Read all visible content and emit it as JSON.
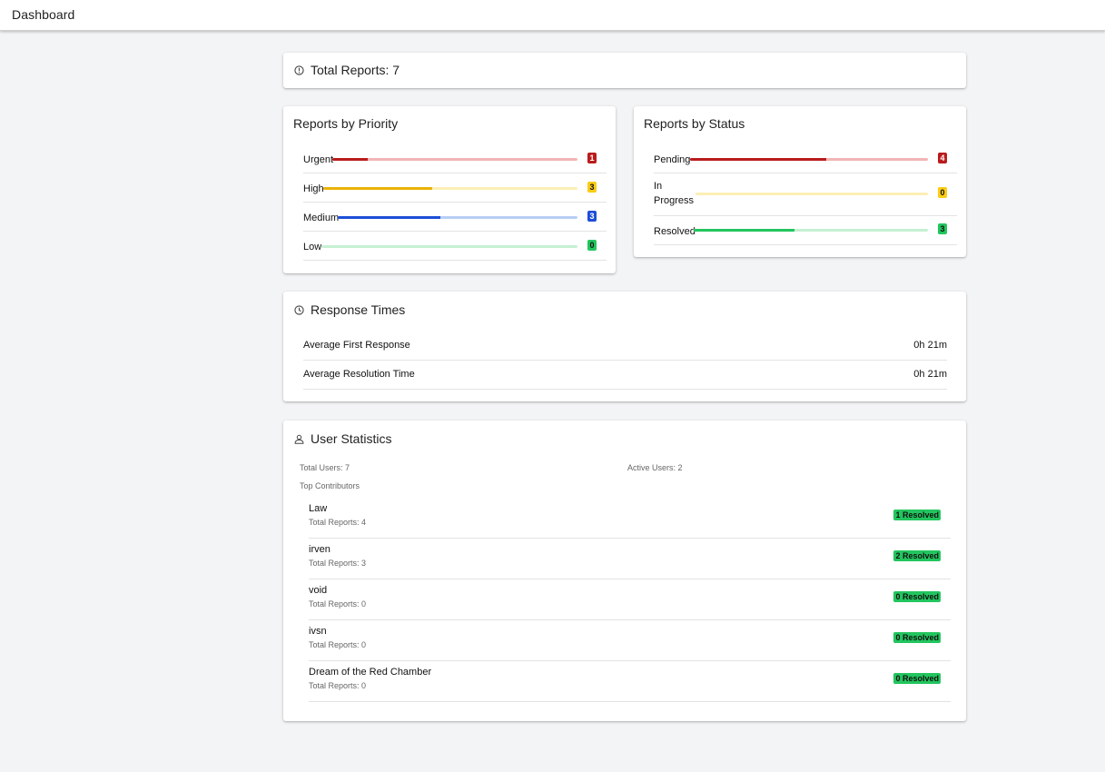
{
  "appbar": {
    "title": "Dashboard"
  },
  "total_reports": {
    "label": "Total Reports: 7"
  },
  "priority": {
    "title": "Reports by Priority",
    "items": [
      {
        "label": "Urgent",
        "count": "1",
        "fraction": 0.143,
        "color": "#b91c1c",
        "track": "#f1b5b5",
        "badge_bg": "#b91c1c",
        "badge_fg": "#ffffff"
      },
      {
        "label": "High",
        "count": "3",
        "fraction": 0.429,
        "color": "#eab308",
        "track": "#fbefb5",
        "badge_bg": "#facc15",
        "badge_fg": "#111111"
      },
      {
        "label": "Medium",
        "count": "3",
        "fraction": 0.429,
        "color": "#1d4ed8",
        "track": "#b9cdf5",
        "badge_bg": "#1d4ed8",
        "badge_fg": "#ffffff"
      },
      {
        "label": "Low",
        "count": "0",
        "fraction": 0,
        "color": "#22c55e",
        "track": "#c6f0d3",
        "badge_bg": "#22c55e",
        "badge_fg": "#111111"
      }
    ]
  },
  "status": {
    "title": "Reports by Status",
    "items": [
      {
        "label": "Pending",
        "count": "4",
        "fraction": 0.571,
        "color": "#b91c1c",
        "track": "#f1b5b5",
        "badge_bg": "#b91c1c",
        "badge_fg": "#ffffff"
      },
      {
        "label": "In\nProgress",
        "count": "0",
        "fraction": 0,
        "color": "#eab308",
        "track": "#fbefb5",
        "badge_bg": "#facc15",
        "badge_fg": "#111111"
      },
      {
        "label": "Resolved",
        "count": "3",
        "fraction": 0.429,
        "color": "#22c55e",
        "track": "#c6f0d3",
        "badge_bg": "#22c55e",
        "badge_fg": "#111111"
      }
    ]
  },
  "response_times": {
    "title": "Response Times",
    "rows": [
      {
        "label": "Average First Response",
        "value": "0h 21m"
      },
      {
        "label": "Average Resolution Time",
        "value": "0h 21m"
      }
    ]
  },
  "user_statistics": {
    "title": "User Statistics",
    "total_users": "Total Users: 7",
    "active_users": "Active Users: 2",
    "top_contributors_label": "Top Contributors",
    "contributors": [
      {
        "name": "Law",
        "sub": "Total Reports: 4",
        "resolved": "1 Resolved"
      },
      {
        "name": "irven",
        "sub": "Total Reports: 3",
        "resolved": "2 Resolved"
      },
      {
        "name": "void",
        "sub": "Total Reports: 0",
        "resolved": "0 Resolved"
      },
      {
        "name": "ivsn",
        "sub": "Total Reports: 0",
        "resolved": "0 Resolved"
      },
      {
        "name": "Dream of the Red Chamber",
        "sub": "Total Reports: 0",
        "resolved": "0 Resolved"
      }
    ]
  },
  "icons": {
    "total_reports": "info-circle-icon",
    "response_times": "clock-icon",
    "user_statistics": "user-icon"
  }
}
